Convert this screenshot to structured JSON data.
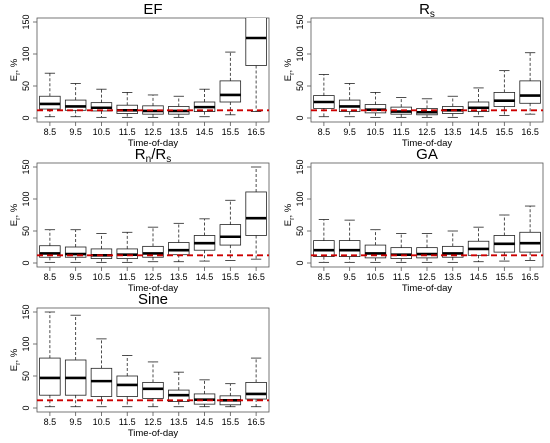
{
  "chart_data": [
    {
      "type": "box",
      "title": "EF",
      "xlabel": "Time-of-day",
      "ylabel": "E",
      "ylabel_sub": "r",
      "ylabel_unit": ", %",
      "ylim": [
        0,
        150
      ],
      "yticks": [
        0,
        50,
        100,
        150
      ],
      "reference_line": 12,
      "categories": [
        "8.5",
        "9.5",
        "10.5",
        "11.5",
        "12.5",
        "13.5",
        "14.5",
        "15.5",
        "16.5"
      ],
      "boxes": [
        {
          "min": 2,
          "q1": 14,
          "median": 22,
          "q3": 34,
          "max": 70
        },
        {
          "min": 2,
          "q1": 12,
          "median": 18,
          "q3": 28,
          "max": 54
        },
        {
          "min": 1,
          "q1": 11,
          "median": 16,
          "q3": 24,
          "max": 45
        },
        {
          "min": 1,
          "q1": 7,
          "median": 12,
          "q3": 20,
          "max": 40
        },
        {
          "min": 1,
          "q1": 6,
          "median": 11,
          "q3": 19,
          "max": 36
        },
        {
          "min": 1,
          "q1": 6,
          "median": 11,
          "q3": 18,
          "max": 34
        },
        {
          "min": 2,
          "q1": 10,
          "median": 17,
          "q3": 25,
          "max": 45
        },
        {
          "min": 5,
          "q1": 25,
          "median": 36,
          "q3": 58,
          "max": 103
        },
        {
          "min": 10,
          "q1": 82,
          "median": 125,
          "q3": 160,
          "max": 160
        }
      ]
    },
    {
      "type": "box",
      "title": "R",
      "title_sub": "s",
      "xlabel": "Time-of-day",
      "ylabel": "E",
      "ylabel_sub": "r",
      "ylabel_unit": ", %",
      "ylim": [
        0,
        150
      ],
      "yticks": [
        0,
        50,
        100,
        150
      ],
      "reference_line": 12,
      "categories": [
        "8.5",
        "9.5",
        "10.5",
        "11.5",
        "12.5",
        "13.5",
        "14.5",
        "15.5",
        "16.5"
      ],
      "boxes": [
        {
          "min": 2,
          "q1": 15,
          "median": 25,
          "q3": 35,
          "max": 68
        },
        {
          "min": 2,
          "q1": 10,
          "median": 18,
          "q3": 28,
          "max": 54
        },
        {
          "min": 1,
          "q1": 8,
          "median": 13,
          "q3": 21,
          "max": 40
        },
        {
          "min": 1,
          "q1": 6,
          "median": 10,
          "q3": 17,
          "max": 32
        },
        {
          "min": 1,
          "q1": 5,
          "median": 9,
          "q3": 15,
          "max": 30
        },
        {
          "min": 1,
          "q1": 7,
          "median": 12,
          "q3": 18,
          "max": 34
        },
        {
          "min": 2,
          "q1": 10,
          "median": 16,
          "q3": 25,
          "max": 47
        },
        {
          "min": 4,
          "q1": 18,
          "median": 27,
          "q3": 40,
          "max": 74
        },
        {
          "min": 6,
          "q1": 23,
          "median": 35,
          "q3": 58,
          "max": 102
        }
      ]
    },
    {
      "type": "box",
      "title": "R",
      "title_sub": "n",
      "title_rest": "/R",
      "title_sub2": "s",
      "xlabel": "Time-of-day",
      "ylabel": "E",
      "ylabel_sub": "r",
      "ylabel_unit": ", %",
      "ylim": [
        0,
        150
      ],
      "yticks": [
        0,
        50,
        100,
        150
      ],
      "reference_line": 12,
      "categories": [
        "8.5",
        "9.5",
        "10.5",
        "11.5",
        "12.5",
        "13.5",
        "14.5",
        "15.5",
        "16.5"
      ],
      "boxes": [
        {
          "min": 1,
          "q1": 9,
          "median": 15,
          "q3": 27,
          "max": 52
        },
        {
          "min": 1,
          "q1": 9,
          "median": 14,
          "q3": 25,
          "max": 52
        },
        {
          "min": 1,
          "q1": 7,
          "median": 12,
          "q3": 22,
          "max": 46
        },
        {
          "min": 1,
          "q1": 7,
          "median": 13,
          "q3": 22,
          "max": 48
        },
        {
          "min": 2,
          "q1": 9,
          "median": 15,
          "q3": 26,
          "max": 56
        },
        {
          "min": 2,
          "q1": 13,
          "median": 20,
          "q3": 32,
          "max": 62
        },
        {
          "min": 3,
          "q1": 20,
          "median": 31,
          "q3": 43,
          "max": 69
        },
        {
          "min": 4,
          "q1": 28,
          "median": 41,
          "q3": 60,
          "max": 98
        },
        {
          "min": 6,
          "q1": 43,
          "median": 70,
          "q3": 111,
          "max": 150
        }
      ]
    },
    {
      "type": "box",
      "title": "GA",
      "xlabel": "Time-of-day",
      "ylabel": "E",
      "ylabel_sub": "r",
      "ylabel_unit": ", %",
      "ylim": [
        0,
        150
      ],
      "yticks": [
        0,
        50,
        100,
        150
      ],
      "reference_line": 12,
      "categories": [
        "8.5",
        "9.5",
        "10.5",
        "11.5",
        "12.5",
        "13.5",
        "14.5",
        "15.5",
        "16.5"
      ],
      "boxes": [
        {
          "min": 1,
          "q1": 10,
          "median": 20,
          "q3": 35,
          "max": 68
        },
        {
          "min": 1,
          "q1": 10,
          "median": 20,
          "q3": 35,
          "max": 67
        },
        {
          "min": 1,
          "q1": 8,
          "median": 15,
          "q3": 28,
          "max": 52
        },
        {
          "min": 1,
          "q1": 7,
          "median": 13,
          "q3": 24,
          "max": 46
        },
        {
          "min": 1,
          "q1": 8,
          "median": 14,
          "q3": 24,
          "max": 46
        },
        {
          "min": 1,
          "q1": 9,
          "median": 15,
          "q3": 26,
          "max": 50
        },
        {
          "min": 2,
          "q1": 12,
          "median": 22,
          "q3": 34,
          "max": 56
        },
        {
          "min": 3,
          "q1": 17,
          "median": 30,
          "q3": 43,
          "max": 75
        },
        {
          "min": 4,
          "q1": 17,
          "median": 31,
          "q3": 48,
          "max": 89
        }
      ]
    },
    {
      "type": "box",
      "title": "Sine",
      "xlabel": "Time-of-day",
      "ylabel": "E",
      "ylabel_sub": "r",
      "ylabel_unit": ", %",
      "ylim": [
        0,
        150
      ],
      "yticks": [
        0,
        50,
        100,
        150
      ],
      "reference_line": 12,
      "categories": [
        "8.5",
        "9.5",
        "10.5",
        "11.5",
        "12.5",
        "13.5",
        "14.5",
        "15.5",
        "16.5"
      ],
      "boxes": [
        {
          "min": 2,
          "q1": 20,
          "median": 47,
          "q3": 78,
          "max": 150
        },
        {
          "min": 2,
          "q1": 20,
          "median": 47,
          "q3": 75,
          "max": 145
        },
        {
          "min": 2,
          "q1": 18,
          "median": 42,
          "q3": 62,
          "max": 108
        },
        {
          "min": 2,
          "q1": 18,
          "median": 36,
          "q3": 50,
          "max": 82
        },
        {
          "min": 2,
          "q1": 15,
          "median": 30,
          "q3": 40,
          "max": 72
        },
        {
          "min": 2,
          "q1": 10,
          "median": 20,
          "q3": 28,
          "max": 56
        },
        {
          "min": 2,
          "q1": 6,
          "median": 13,
          "q3": 22,
          "max": 44
        },
        {
          "min": 2,
          "q1": 5,
          "median": 12,
          "q3": 19,
          "max": 38
        },
        {
          "min": 2,
          "q1": 14,
          "median": 22,
          "q3": 40,
          "max": 78
        }
      ]
    }
  ],
  "colors": {
    "reference_line": "#cc0000",
    "box": "#222222",
    "axis": "#555555",
    "text": "#000000"
  }
}
